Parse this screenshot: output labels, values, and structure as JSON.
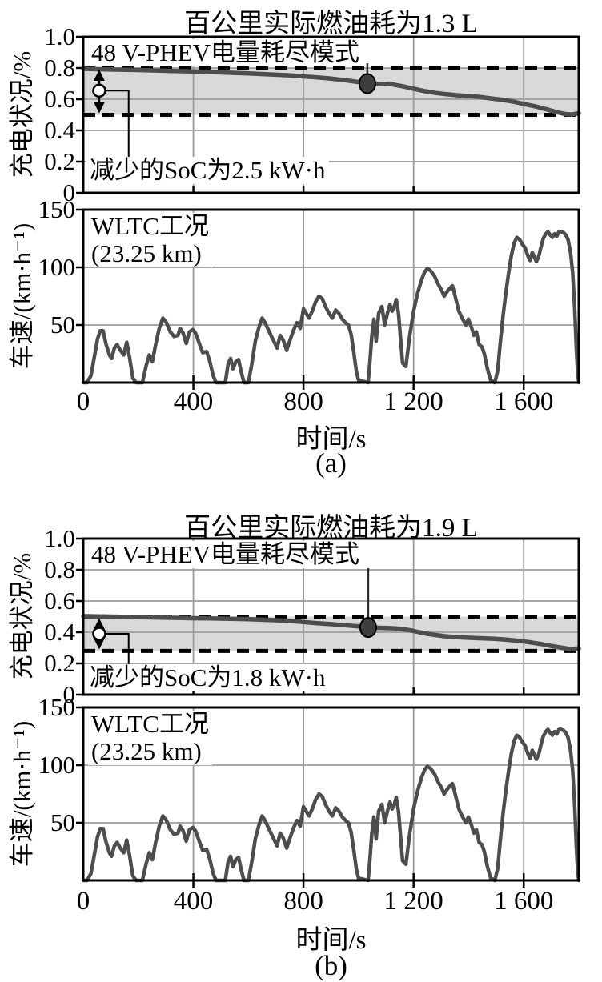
{
  "figure": {
    "background": "#ffffff",
    "curve_color": "#4d4d4d",
    "band_color": "#d9d9d9",
    "grid_color": "#9b9b9b",
    "dash_color": "#000000",
    "marker_fill": "#3d3d3d"
  },
  "panels": [
    {
      "panel_label": "(a)",
      "title": "百公里实际燃油耗为1.3 L",
      "mode_label": "48 V-PHEV电量耗尽模式",
      "soc_drop": "减少的SoC为2.5 kW·h",
      "wltc_line1": "WLTC工况",
      "wltc_line2": "(23.25 km)",
      "soc_ylabel": "充电状况/%",
      "speed_ylabel": "车速/(km·h⁻¹)",
      "xlabel": "时间/s",
      "soc_yticks": [
        {
          "label": "1.0",
          "v": 1.0
        },
        {
          "label": "0.8",
          "v": 0.8
        },
        {
          "label": "0.6",
          "v": 0.6
        },
        {
          "label": "0.4",
          "v": 0.4
        },
        {
          "label": "0.2",
          "v": 0.2
        },
        {
          "label": "0",
          "v": 0
        }
      ],
      "speed_yticks": [
        {
          "label": "150",
          "v": 150
        },
        {
          "label": "100",
          "v": 100
        },
        {
          "label": "50",
          "v": 50
        }
      ],
      "xticks": [
        {
          "label": "0",
          "t": 0
        },
        {
          "label": "400",
          "t": 400
        },
        {
          "label": "800",
          "t": 800
        },
        {
          "label": "1 200",
          "t": 1200
        },
        {
          "label": "1 600",
          "t": 1600
        }
      ]
    },
    {
      "panel_label": "(b)",
      "title": "百公里实际燃油耗为1.9 L",
      "mode_label": "48 V-PHEV电量耗尽模式",
      "soc_drop": "减少的SoC为1.8 kW·h",
      "wltc_line1": "WLTC工况",
      "wltc_line2": "(23.25 km)",
      "soc_ylabel": "充电状况/%",
      "speed_ylabel": "车速/(km·h⁻¹)",
      "xlabel": "时间/s",
      "soc_yticks": [
        {
          "label": "1.0",
          "v": 1.0
        },
        {
          "label": "0.8",
          "v": 0.8
        },
        {
          "label": "0.6",
          "v": 0.6
        },
        {
          "label": "0.4",
          "v": 0.4
        },
        {
          "label": "0.2",
          "v": 0.2
        },
        {
          "label": "0",
          "v": 0
        }
      ],
      "speed_yticks": [
        {
          "label": "150",
          "v": 150
        },
        {
          "label": "100",
          "v": 100
        },
        {
          "label": "50",
          "v": 50
        }
      ],
      "xticks": [
        {
          "label": "0",
          "t": 0
        },
        {
          "label": "400",
          "t": 400
        },
        {
          "label": "800",
          "t": 800
        },
        {
          "label": "1 200",
          "t": 1200
        },
        {
          "label": "1 600",
          "t": 1600
        }
      ]
    }
  ],
  "chart_data": {
    "charts": [
      {
        "id": "soc-a",
        "kind": "soc",
        "type": "line",
        "title": "百公里实际燃油耗为1.3 L",
        "xlabel": "时间/s",
        "ylabel": "充电状况/%",
        "xlim": [
          0,
          1800
        ],
        "ylim": [
          0,
          1.0
        ],
        "xgrid": [
          400,
          800,
          1200,
          1600
        ],
        "ygrid": [
          0.2,
          0.4,
          0.6,
          0.8
        ],
        "ytick_vals": [
          0,
          0.2,
          0.4,
          0.6,
          0.8,
          1.0
        ],
        "xtick_vals": [
          400,
          800,
          1200,
          1600
        ],
        "band": [
          0.5,
          0.8
        ],
        "dashes": [
          0.8,
          0.5
        ],
        "annotations": [
          "48 V-PHEV电量耗尽模式",
          "减少的SoC为2.5 kW·h"
        ],
        "soc_drop_kwh": 2.5,
        "marker": {
          "t": 1032,
          "soc": 0.7
        },
        "callout_to": 0.83,
        "arrow": {
          "t": 58,
          "top": 0.8,
          "bottom": 0.5,
          "circle": 0.655,
          "elbow_t": 165,
          "drop_to": 0.225
        },
        "points": [
          [
            0,
            0.795
          ],
          [
            100,
            0.79
          ],
          [
            200,
            0.787
          ],
          [
            300,
            0.782
          ],
          [
            400,
            0.778
          ],
          [
            500,
            0.772
          ],
          [
            600,
            0.765
          ],
          [
            700,
            0.757
          ],
          [
            760,
            0.752
          ],
          [
            800,
            0.746
          ],
          [
            850,
            0.74
          ],
          [
            900,
            0.732
          ],
          [
            950,
            0.722
          ],
          [
            1000,
            0.71
          ],
          [
            1032,
            0.7
          ],
          [
            1060,
            0.7
          ],
          [
            1090,
            0.697
          ],
          [
            1110,
            0.7
          ],
          [
            1130,
            0.693
          ],
          [
            1160,
            0.683
          ],
          [
            1200,
            0.667
          ],
          [
            1240,
            0.652
          ],
          [
            1280,
            0.64
          ],
          [
            1320,
            0.632
          ],
          [
            1360,
            0.625
          ],
          [
            1400,
            0.62
          ],
          [
            1440,
            0.615
          ],
          [
            1480,
            0.605
          ],
          [
            1520,
            0.597
          ],
          [
            1560,
            0.585
          ],
          [
            1600,
            0.57
          ],
          [
            1640,
            0.555
          ],
          [
            1680,
            0.537
          ],
          [
            1720,
            0.517
          ],
          [
            1750,
            0.505
          ],
          [
            1775,
            0.502
          ],
          [
            1800,
            0.51
          ]
        ]
      },
      {
        "id": "speed-a",
        "kind": "spd",
        "type": "line",
        "title": "WLTC工况 (23.25 km)",
        "xlabel": "时间/s",
        "ylabel": "车速/(km·h⁻¹)",
        "xlim": [
          0,
          1800
        ],
        "ylim": [
          0,
          150
        ],
        "xgrid": [
          400,
          800,
          1200,
          1600
        ],
        "ygrid": [
          50,
          100
        ],
        "ytick_vals": [
          50,
          100,
          150
        ],
        "xtick_vals": [
          400,
          800,
          1200,
          1600
        ],
        "points_ref": "wltc_speed_points"
      },
      {
        "id": "soc-b",
        "kind": "soc",
        "type": "line",
        "title": "百公里实际燃油耗为1.9 L",
        "xlabel": "时间/s",
        "ylabel": "充电状况/%",
        "xlim": [
          0,
          1800
        ],
        "ylim": [
          0,
          1.0
        ],
        "xgrid": [
          400,
          800,
          1200,
          1600
        ],
        "ygrid": [
          0.2,
          0.4,
          0.6,
          0.8
        ],
        "ytick_vals": [
          0,
          0.2,
          0.4,
          0.6,
          0.8,
          1.0
        ],
        "xtick_vals": [
          400,
          800,
          1200,
          1600
        ],
        "band": [
          0.28,
          0.5
        ],
        "dashes": [
          0.5,
          0.28
        ],
        "annotations": [
          "48 V-PHEV电量耗尽模式",
          "减少的SoC为1.8 kW·h"
        ],
        "soc_drop_kwh": 1.8,
        "marker": {
          "t": 1035,
          "soc": 0.43
        },
        "callout_to": 0.81,
        "arrow": {
          "t": 58,
          "top": 0.5,
          "bottom": 0.28,
          "circle": 0.39,
          "elbow_t": 165,
          "drop_to": 0.165
        },
        "points": [
          [
            0,
            0.503
          ],
          [
            100,
            0.5
          ],
          [
            200,
            0.497
          ],
          [
            300,
            0.493
          ],
          [
            400,
            0.49
          ],
          [
            500,
            0.487
          ],
          [
            600,
            0.483
          ],
          [
            650,
            0.48
          ],
          [
            700,
            0.477
          ],
          [
            750,
            0.472
          ],
          [
            800,
            0.465
          ],
          [
            850,
            0.458
          ],
          [
            900,
            0.452
          ],
          [
            950,
            0.445
          ],
          [
            1000,
            0.437
          ],
          [
            1035,
            0.43
          ],
          [
            1070,
            0.428
          ],
          [
            1100,
            0.427
          ],
          [
            1130,
            0.425
          ],
          [
            1160,
            0.42
          ],
          [
            1190,
            0.412
          ],
          [
            1220,
            0.4
          ],
          [
            1250,
            0.39
          ],
          [
            1280,
            0.382
          ],
          [
            1310,
            0.375
          ],
          [
            1340,
            0.37
          ],
          [
            1380,
            0.366
          ],
          [
            1420,
            0.363
          ],
          [
            1460,
            0.36
          ],
          [
            1500,
            0.357
          ],
          [
            1540,
            0.352
          ],
          [
            1580,
            0.345
          ],
          [
            1620,
            0.336
          ],
          [
            1660,
            0.325
          ],
          [
            1700,
            0.312
          ],
          [
            1740,
            0.3
          ],
          [
            1770,
            0.292
          ],
          [
            1800,
            0.296
          ]
        ]
      },
      {
        "id": "speed-b",
        "kind": "spd",
        "type": "line",
        "title": "WLTC工况 (23.25 km)",
        "xlabel": "时间/s",
        "ylabel": "车速/(km·h⁻¹)",
        "xlim": [
          0,
          1800
        ],
        "ylim": [
          0,
          150
        ],
        "xgrid": [
          400,
          800,
          1200,
          1600
        ],
        "ygrid": [
          50,
          100
        ],
        "ytick_vals": [
          50,
          100,
          150
        ],
        "xtick_vals": [
          400,
          800,
          1200,
          1600
        ],
        "points_ref": "wltc_speed_points"
      }
    ],
    "wltc_speed_points": [
      [
        0,
        0
      ],
      [
        14,
        0
      ],
      [
        28,
        6
      ],
      [
        40,
        22
      ],
      [
        52,
        38
      ],
      [
        62,
        45
      ],
      [
        72,
        45
      ],
      [
        82,
        34
      ],
      [
        95,
        24
      ],
      [
        103,
        21
      ],
      [
        113,
        30
      ],
      [
        123,
        33
      ],
      [
        135,
        28
      ],
      [
        147,
        24
      ],
      [
        158,
        35
      ],
      [
        168,
        22
      ],
      [
        180,
        4
      ],
      [
        192,
        0
      ],
      [
        215,
        0
      ],
      [
        228,
        14
      ],
      [
        240,
        24
      ],
      [
        251,
        18
      ],
      [
        263,
        33
      ],
      [
        276,
        47
      ],
      [
        289,
        56
      ],
      [
        302,
        52
      ],
      [
        316,
        44
      ],
      [
        330,
        40
      ],
      [
        344,
        41
      ],
      [
        352,
        47
      ],
      [
        363,
        43
      ],
      [
        374,
        34
      ],
      [
        386,
        44
      ],
      [
        398,
        46
      ],
      [
        408,
        43
      ],
      [
        420,
        35
      ],
      [
        434,
        26
      ],
      [
        448,
        27
      ],
      [
        460,
        18
      ],
      [
        472,
        6
      ],
      [
        482,
        0
      ],
      [
        516,
        0
      ],
      [
        526,
        16
      ],
      [
        535,
        21
      ],
      [
        544,
        12
      ],
      [
        554,
        18
      ],
      [
        564,
        20
      ],
      [
        574,
        9
      ],
      [
        584,
        0
      ],
      [
        600,
        0
      ],
      [
        612,
        16
      ],
      [
        625,
        36
      ],
      [
        638,
        48
      ],
      [
        650,
        56
      ],
      [
        660,
        52
      ],
      [
        670,
        47
      ],
      [
        682,
        41
      ],
      [
        694,
        35
      ],
      [
        704,
        30
      ],
      [
        715,
        41
      ],
      [
        726,
        37
      ],
      [
        739,
        28
      ],
      [
        751,
        37
      ],
      [
        763,
        45
      ],
      [
        776,
        52
      ],
      [
        788,
        47
      ],
      [
        800,
        64
      ],
      [
        810,
        60
      ],
      [
        820,
        56
      ],
      [
        832,
        62
      ],
      [
        844,
        70
      ],
      [
        856,
        75
      ],
      [
        868,
        73
      ],
      [
        880,
        66
      ],
      [
        893,
        60
      ],
      [
        905,
        56
      ],
      [
        917,
        63
      ],
      [
        929,
        60
      ],
      [
        941,
        55
      ],
      [
        953,
        52
      ],
      [
        963,
        50
      ],
      [
        973,
        42
      ],
      [
        983,
        26
      ],
      [
        992,
        10
      ],
      [
        1000,
        2
      ],
      [
        1035,
        0
      ],
      [
        1042,
        20
      ],
      [
        1048,
        40
      ],
      [
        1056,
        55
      ],
      [
        1064,
        36
      ],
      [
        1073,
        60
      ],
      [
        1085,
        66
      ],
      [
        1095,
        50
      ],
      [
        1105,
        60
      ],
      [
        1114,
        68
      ],
      [
        1122,
        62
      ],
      [
        1130,
        66
      ],
      [
        1137,
        72
      ],
      [
        1145,
        60
      ],
      [
        1152,
        40
      ],
      [
        1160,
        17
      ],
      [
        1172,
        14
      ],
      [
        1186,
        41
      ],
      [
        1200,
        62
      ],
      [
        1215,
        78
      ],
      [
        1230,
        90
      ],
      [
        1240,
        96
      ],
      [
        1250,
        99
      ],
      [
        1262,
        97
      ],
      [
        1277,
        92
      ],
      [
        1290,
        85
      ],
      [
        1300,
        81
      ],
      [
        1311,
        75
      ],
      [
        1322,
        79
      ],
      [
        1332,
        82
      ],
      [
        1341,
        84
      ],
      [
        1352,
        74
      ],
      [
        1364,
        62
      ],
      [
        1378,
        55
      ],
      [
        1390,
        50
      ],
      [
        1399,
        55
      ],
      [
        1410,
        48
      ],
      [
        1419,
        41
      ],
      [
        1428,
        44
      ],
      [
        1438,
        33
      ],
      [
        1448,
        31
      ],
      [
        1457,
        25
      ],
      [
        1468,
        12
      ],
      [
        1480,
        2
      ],
      [
        1495,
        0
      ],
      [
        1505,
        10
      ],
      [
        1515,
        35
      ],
      [
        1525,
        58
      ],
      [
        1535,
        78
      ],
      [
        1545,
        95
      ],
      [
        1555,
        110
      ],
      [
        1565,
        121
      ],
      [
        1575,
        126
      ],
      [
        1585,
        124
      ],
      [
        1595,
        120
      ],
      [
        1605,
        117
      ],
      [
        1615,
        110
      ],
      [
        1623,
        106
      ],
      [
        1631,
        113
      ],
      [
        1639,
        109
      ],
      [
        1646,
        105
      ],
      [
        1655,
        110
      ],
      [
        1663,
        118
      ],
      [
        1671,
        125
      ],
      [
        1680,
        129
      ],
      [
        1688,
        131
      ],
      [
        1696,
        128
      ],
      [
        1704,
        126
      ],
      [
        1712,
        129
      ],
      [
        1720,
        127
      ],
      [
        1728,
        131
      ],
      [
        1736,
        131
      ],
      [
        1745,
        130
      ],
      [
        1753,
        128
      ],
      [
        1761,
        124
      ],
      [
        1770,
        113
      ],
      [
        1778,
        95
      ],
      [
        1785,
        65
      ],
      [
        1791,
        30
      ],
      [
        1796,
        8
      ],
      [
        1800,
        0
      ]
    ]
  }
}
